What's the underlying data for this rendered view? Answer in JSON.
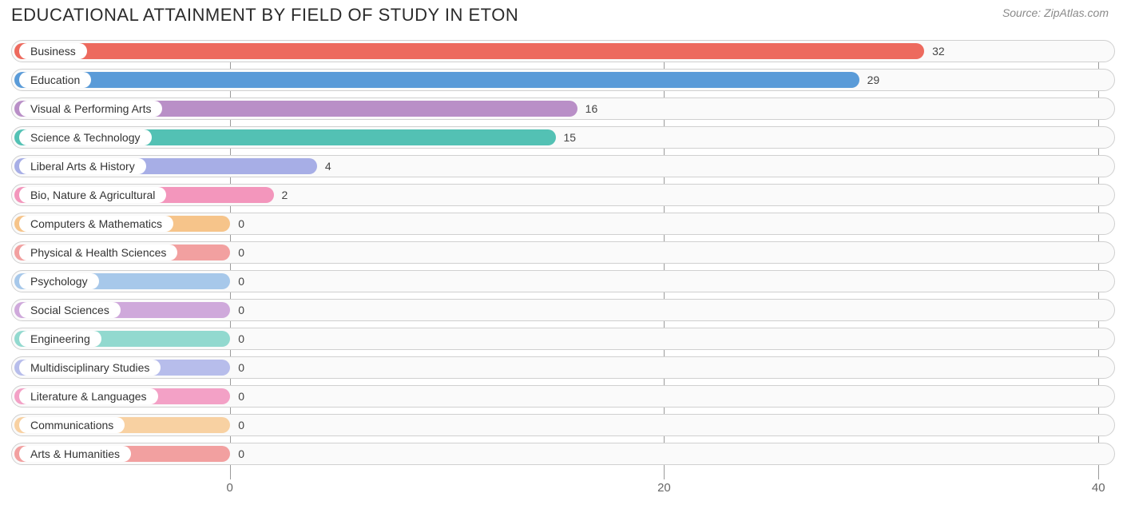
{
  "title": "EDUCATIONAL ATTAINMENT BY FIELD OF STUDY IN ETON",
  "source": "Source: ZipAtlas.com",
  "chart": {
    "type": "bar-horizontal",
    "background": "#ffffff",
    "row_bg": "#fafafa",
    "row_border": "#d0d0d0",
    "grid_color": "#9a9a9a",
    "label_fontsize": 14,
    "value_fontsize": 14,
    "title_fontsize": 22,
    "x_axis": {
      "min": -2,
      "max": 41,
      "ticks": [
        0,
        20,
        40
      ]
    },
    "zero_offset_pct": 19.8,
    "bars": [
      {
        "label": "Business",
        "value": 32,
        "color": "#ed6a5e"
      },
      {
        "label": "Education",
        "value": 29,
        "color": "#5a9bd8"
      },
      {
        "label": "Visual & Performing Arts",
        "value": 16,
        "color": "#b98fc7"
      },
      {
        "label": "Science & Technology",
        "value": 15,
        "color": "#53c1b4"
      },
      {
        "label": "Liberal Arts & History",
        "value": 4,
        "color": "#a7aee6"
      },
      {
        "label": "Bio, Nature & Agricultural",
        "value": 2,
        "color": "#f396bc"
      },
      {
        "label": "Computers & Mathematics",
        "value": 0,
        "color": "#f6c48a"
      },
      {
        "label": "Physical & Health Sciences",
        "value": 0,
        "color": "#f2a0a0"
      },
      {
        "label": "Psychology",
        "value": 0,
        "color": "#a7c8ea"
      },
      {
        "label": "Social Sciences",
        "value": 0,
        "color": "#cfa9db"
      },
      {
        "label": "Engineering",
        "value": 0,
        "color": "#92d9cf"
      },
      {
        "label": "Multidisciplinary Studies",
        "value": 0,
        "color": "#b7bdeb"
      },
      {
        "label": "Literature & Languages",
        "value": 0,
        "color": "#f3a1c6"
      },
      {
        "label": "Communications",
        "value": 0,
        "color": "#f8d1a2"
      },
      {
        "label": "Arts & Humanities",
        "value": 0,
        "color": "#f2a0a0"
      }
    ]
  }
}
